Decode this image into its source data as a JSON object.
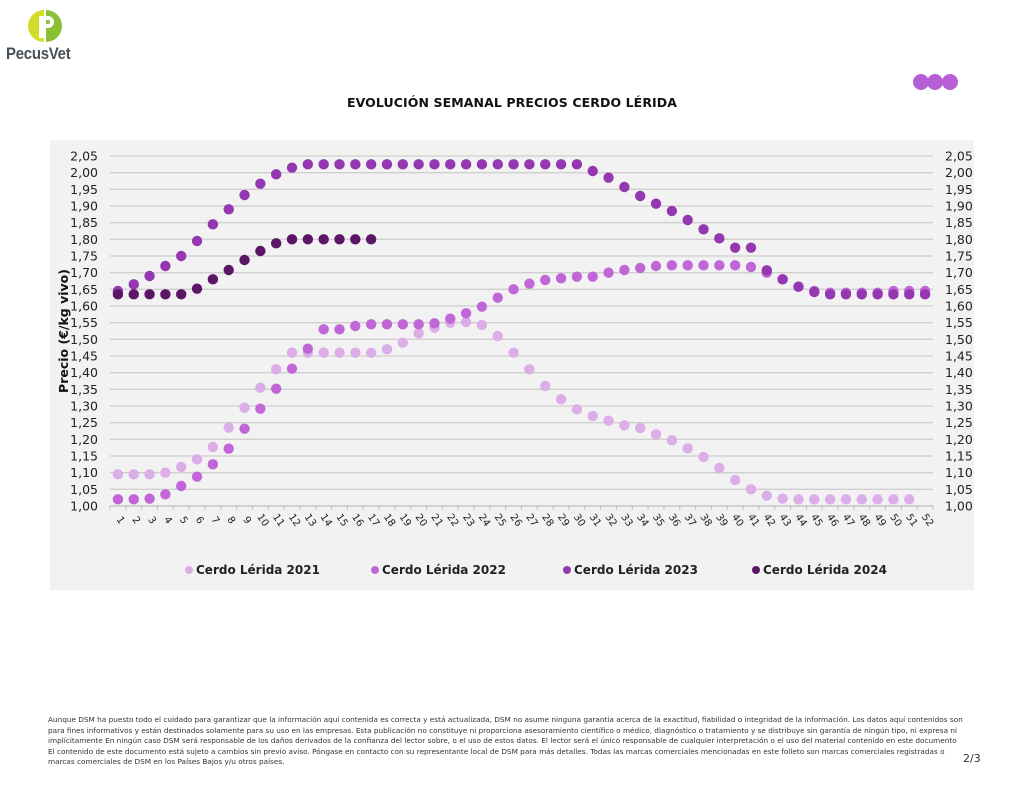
{
  "brand": {
    "name": "PecusVet",
    "colors": {
      "light_green": "#d4dc2a",
      "dark_green": "#8bc034",
      "text": "#4a5058"
    }
  },
  "badge": {
    "icon": "three-dots-logo",
    "color": "#b65fd6"
  },
  "title": "EVOLUCIÓN SEMANAL PRECIOS CERDO LÉRIDA",
  "chart_data": {
    "type": "scatter",
    "title": "EVOLUCIÓN SEMANAL PRECIOS CERDO LÉRIDA",
    "xlabel": "",
    "ylabel": "Precio (€/kg vivo)",
    "ylim": [
      1.0,
      2.05
    ],
    "grid": true,
    "legend_position": "bottom",
    "categories": [
      1,
      2,
      3,
      4,
      5,
      6,
      7,
      8,
      9,
      10,
      11,
      12,
      13,
      14,
      15,
      16,
      17,
      18,
      19,
      20,
      21,
      22,
      23,
      24,
      25,
      26,
      27,
      28,
      29,
      30,
      31,
      32,
      33,
      34,
      35,
      36,
      37,
      38,
      39,
      40,
      41,
      42,
      43,
      44,
      45,
      46,
      47,
      48,
      49,
      50,
      51,
      52
    ],
    "yticks": [
      "1,00",
      "1,05",
      "1,10",
      "1,15",
      "1,20",
      "1,25",
      "1,30",
      "1,35",
      "1,40",
      "1,45",
      "1,50",
      "1,55",
      "1,60",
      "1,65",
      "1,70",
      "1,75",
      "1,80",
      "1,85",
      "1,90",
      "1,95",
      "2,00",
      "2,05"
    ],
    "series": [
      {
        "name": "Cerdo Lérida 2021",
        "color": "#dcaee8",
        "values": [
          1.095,
          1.095,
          1.095,
          1.1,
          1.117,
          1.14,
          1.177,
          1.235,
          1.295,
          1.355,
          1.41,
          1.46,
          1.46,
          1.46,
          1.46,
          1.46,
          1.46,
          1.47,
          1.49,
          1.518,
          1.535,
          1.55,
          1.552,
          1.543,
          1.51,
          1.46,
          1.41,
          1.36,
          1.32,
          1.29,
          1.27,
          1.256,
          1.242,
          1.234,
          1.215,
          1.197,
          1.173,
          1.147,
          1.114,
          1.078,
          1.05,
          1.031,
          1.022,
          1.02,
          1.02,
          1.02,
          1.02,
          1.02,
          1.02,
          1.02,
          1.02,
          null
        ]
      },
      {
        "name": "Cerdo Lérida 2022",
        "color": "#c166d6",
        "values": [
          1.02,
          1.02,
          1.022,
          1.035,
          1.06,
          1.088,
          1.125,
          1.172,
          1.232,
          1.292,
          1.352,
          1.412,
          1.472,
          1.53,
          1.53,
          1.54,
          1.545,
          1.545,
          1.545,
          1.545,
          1.548,
          1.562,
          1.578,
          1.598,
          1.625,
          1.65,
          1.667,
          1.678,
          1.683,
          1.688,
          1.688,
          1.7,
          1.708,
          1.714,
          1.72,
          1.722,
          1.722,
          1.722,
          1.722,
          1.722,
          1.717,
          1.7,
          1.68,
          1.658,
          1.645,
          1.64,
          1.64,
          1.64,
          1.64,
          1.645,
          1.645,
          1.645
        ]
      },
      {
        "name": "Cerdo Lérida 2023",
        "color": "#9537b0",
        "values": [
          1.645,
          1.665,
          1.69,
          1.72,
          1.75,
          1.795,
          1.845,
          1.89,
          1.933,
          1.967,
          1.995,
          2.015,
          2.025,
          2.025,
          2.025,
          2.025,
          2.025,
          2.025,
          2.025,
          2.025,
          2.025,
          2.025,
          2.025,
          2.025,
          2.025,
          2.025,
          2.025,
          2.025,
          2.025,
          2.025,
          2.005,
          1.985,
          1.957,
          1.93,
          1.907,
          1.885,
          1.858,
          1.83,
          1.803,
          1.775,
          1.775,
          1.707,
          1.68,
          1.658,
          1.642,
          1.635,
          1.635,
          1.635,
          1.635,
          1.635,
          1.635,
          1.635
        ]
      },
      {
        "name": "Cerdo Lérida 2024",
        "color": "#5b1766",
        "values": [
          1.635,
          1.635,
          1.635,
          1.635,
          1.635,
          1.652,
          1.68,
          1.708,
          1.738,
          1.765,
          1.788,
          1.8,
          1.8,
          1.8,
          1.8,
          1.8,
          1.8,
          null,
          null,
          null,
          null,
          null,
          null,
          null,
          null,
          null,
          null,
          null,
          null,
          null,
          null,
          null,
          null,
          null,
          null,
          null,
          null,
          null,
          null,
          null,
          null,
          null,
          null,
          null,
          null,
          null,
          null,
          null,
          null,
          null,
          null,
          null
        ]
      }
    ]
  },
  "disclaimer": "Aunque DSM ha puesto todo el cuidado para garantizar que la información aquí contenida es correcta y está actualizada, DSM no asume ninguna garantía acerca de la exactitud, fiabilidad o integridad de la información. Los datos aquí contenidos son para fines informativos y están destinados solamente para su uso en las empresas. Esta publicación no constituye ni proporciona asesoramiento científico o médico, diagnóstico o tratamiento y se distribuye sin garantía de ningún tipo, ni expresa ni implícitamente En ningún caso DSM será responsable de los daños derivados de la confianza del lector sobre, o el uso de estos datos. El lector será el único responsable de cualquier interpretación o el uso del material contenido en este documento El contenido de este documento está sujeto a cambios sin previo aviso. Póngase en contacto con su representante local de DSM para más detalles. Todas las marcas comerciales mencionadas en este folleto son marcas comerciales registradas o marcas comerciales de DSM en los Países Bajos y/u otros países.",
  "page": "2/3"
}
